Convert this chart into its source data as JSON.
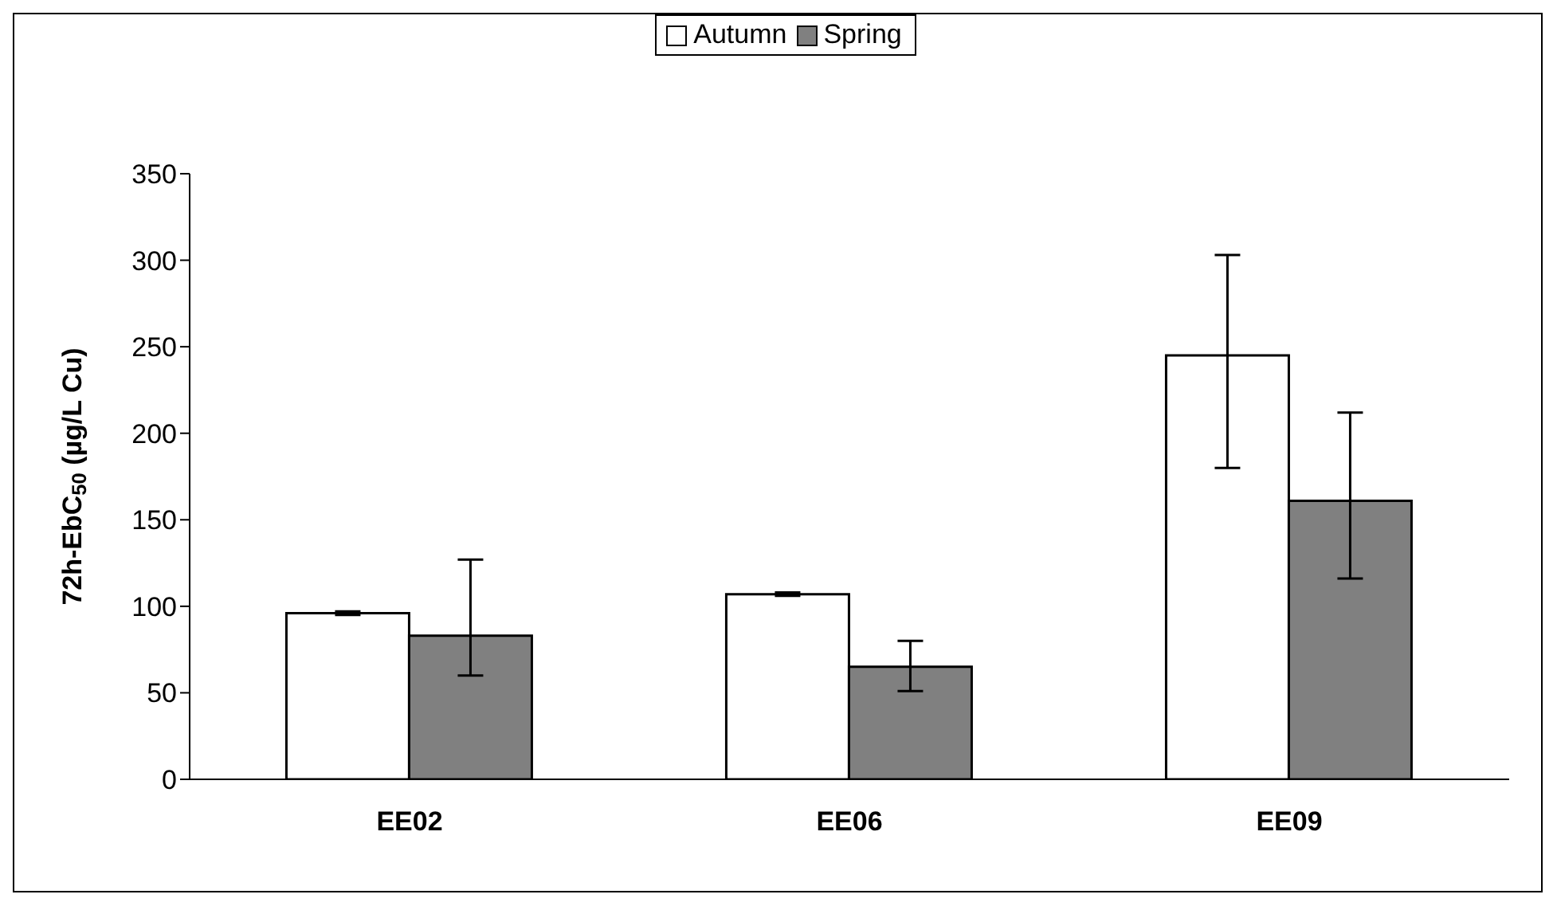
{
  "chart_data": {
    "type": "bar",
    "ylabel": "72h-EbC$_{50}$ (µg/L Cu)",
    "categories": [
      "EE02",
      "EE06",
      "EE09"
    ],
    "series": [
      {
        "name": "Autumn",
        "color": "#ffffff",
        "values": [
          96,
          107,
          245
        ],
        "errors": [
          1,
          1,
          [
            180,
            303
          ]
        ]
      },
      {
        "name": "Spring",
        "color": "#808080",
        "values": [
          83,
          65,
          161
        ],
        "errors": [
          [
            60,
            127
          ],
          [
            51,
            80
          ],
          [
            116,
            212
          ]
        ]
      }
    ],
    "ylim": [
      0,
      350
    ],
    "yticks": [
      0,
      50,
      100,
      150,
      200,
      250,
      300,
      350
    ],
    "grid": false,
    "legend": "top"
  }
}
